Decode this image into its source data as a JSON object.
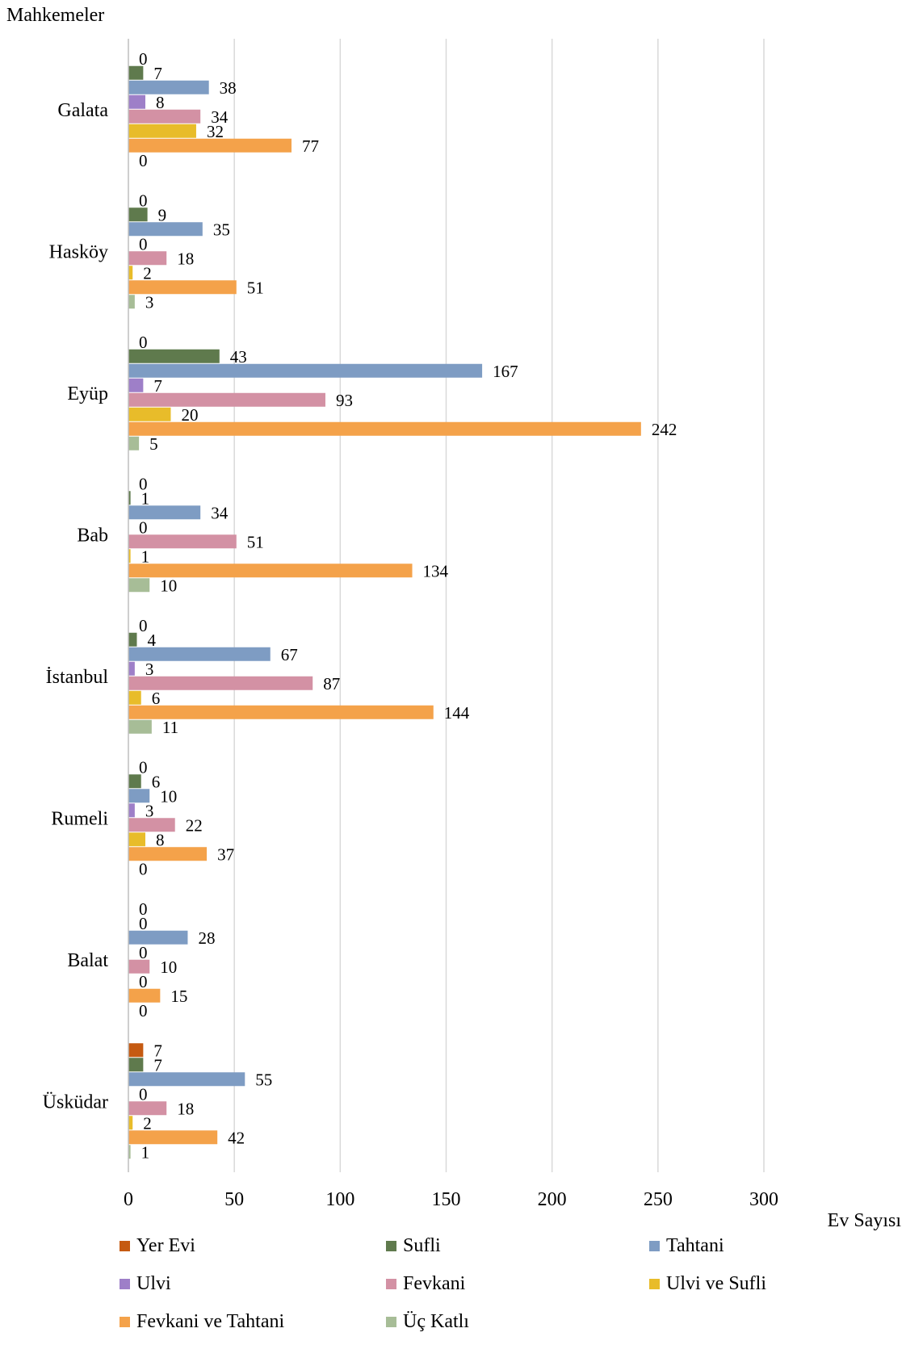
{
  "chart_data": {
    "type": "bar",
    "orientation": "horizontal",
    "ylabel": "Mahkemeler",
    "xlabel": "Ev Sayısı",
    "xlim": [
      0,
      300
    ],
    "xticks": [
      0,
      50,
      100,
      150,
      200,
      250,
      300
    ],
    "grid": true,
    "legend_position": "bottom",
    "categories": [
      "Galata",
      "Hasköy",
      "Eyüp",
      "Bab",
      "İstanbul",
      "Rumeli",
      "Balat",
      "Üsküdar"
    ],
    "series": [
      {
        "name": "Yer Evi",
        "color": "#C55A11",
        "values": [
          0,
          0,
          0,
          0,
          0,
          0,
          0,
          7
        ]
      },
      {
        "name": "Sufli",
        "color": "#5F7A4D",
        "values": [
          7,
          9,
          43,
          1,
          4,
          6,
          0,
          7
        ]
      },
      {
        "name": "Tahtani",
        "color": "#7E9CC3",
        "values": [
          38,
          35,
          167,
          34,
          67,
          10,
          28,
          55
        ]
      },
      {
        "name": "Ulvi",
        "color": "#9E7FC8",
        "values": [
          8,
          0,
          7,
          0,
          3,
          3,
          0,
          0
        ]
      },
      {
        "name": "Fevkani",
        "color": "#D391A4",
        "values": [
          34,
          18,
          93,
          51,
          87,
          22,
          10,
          18
        ]
      },
      {
        "name": "Ulvi ve Sufli",
        "color": "#E8BC2A",
        "values": [
          32,
          2,
          20,
          1,
          6,
          8,
          0,
          2
        ]
      },
      {
        "name": "Fevkani ve Tahtani",
        "color": "#F4A24A",
        "values": [
          77,
          51,
          242,
          134,
          144,
          37,
          15,
          42
        ]
      },
      {
        "name": "Üç Katlı",
        "color": "#A7BD97",
        "values": [
          0,
          3,
          5,
          10,
          11,
          0,
          0,
          1
        ]
      }
    ]
  }
}
